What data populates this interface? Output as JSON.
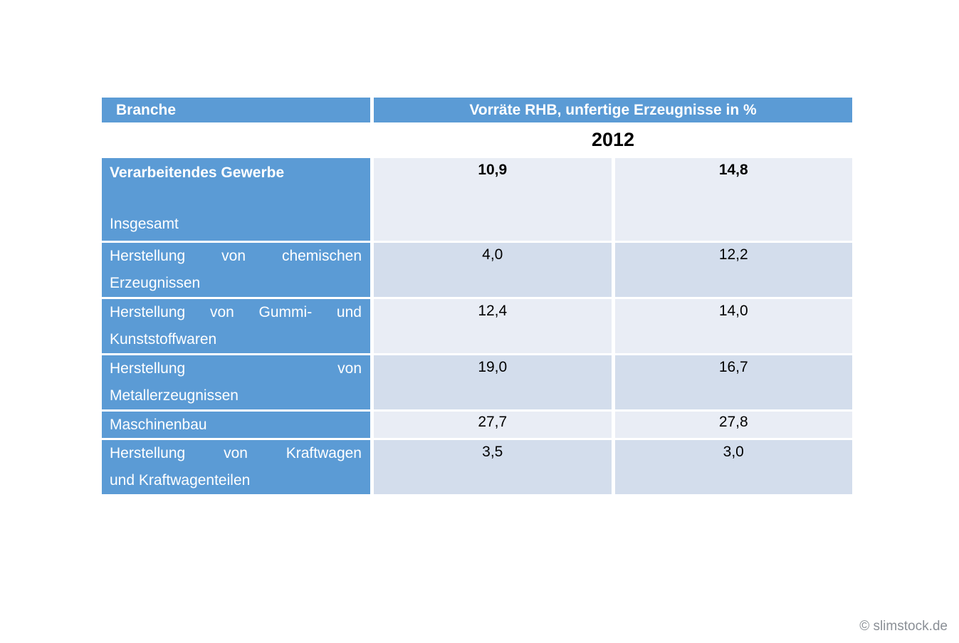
{
  "colors": {
    "header_blue": "#5B9BD5",
    "band_light": "#E9EDF5",
    "band_dark": "#D3DDEC",
    "header_text": "#FFFFFF",
    "value_text": "#000000",
    "footer_text": "#8A8F96"
  },
  "table": {
    "header": {
      "branche": "Branche",
      "vorraete": "Vorräte RHB, unfertige Erzeugnisse in %"
    },
    "year": "2012",
    "rows": [
      {
        "kind": "total",
        "label_top": "Verarbeitendes Gewerbe",
        "label_bottom": "Insgesamt",
        "values": [
          "10,9",
          "14,8"
        ],
        "value_bold": true,
        "band": "light"
      },
      {
        "kind": "normal",
        "label_lines": [
          "Herstellung von chemischen",
          "Erzeugnissen"
        ],
        "values": [
          "4,0",
          "12,2"
        ],
        "band": "dark"
      },
      {
        "kind": "normal",
        "label_lines": [
          "Herstellung von Gummi- und",
          "Kunststoffwaren"
        ],
        "values": [
          "12,4",
          "14,0"
        ],
        "band": "light"
      },
      {
        "kind": "normal",
        "label_lines": [
          "Herstellung von",
          "Metallerzeugnissen"
        ],
        "values": [
          "19,0",
          "16,7"
        ],
        "band": "dark"
      },
      {
        "kind": "normal",
        "label_lines": [
          "Maschinenbau"
        ],
        "values": [
          "27,7",
          "27,8"
        ],
        "band": "light"
      },
      {
        "kind": "normal",
        "label_lines": [
          "Herstellung von Kraftwagen",
          "und Kraftwagenteilen"
        ],
        "values": [
          "3,5",
          "3,0"
        ],
        "band": "dark"
      }
    ]
  },
  "footer": {
    "copyright": "© slimstock.de"
  },
  "chart_data": {
    "type": "table",
    "title": "Vorräte RHB, unfertige Erzeugnisse in %",
    "sub_header": "2012",
    "row_header_column": "Branche",
    "rows": [
      {
        "branche": "Verarbeitendes Gewerbe Insgesamt",
        "values": [
          10.9,
          14.8
        ]
      },
      {
        "branche": "Herstellung von chemischen Erzeugnissen",
        "values": [
          4.0,
          12.2
        ]
      },
      {
        "branche": "Herstellung von Gummi- und Kunststoffwaren",
        "values": [
          12.4,
          14.0
        ]
      },
      {
        "branche": "Herstellung von Metallerzeugnissen",
        "values": [
          19.0,
          16.7
        ]
      },
      {
        "branche": "Maschinenbau",
        "values": [
          27.7,
          27.8
        ]
      },
      {
        "branche": "Herstellung von Kraftwagen und Kraftwagenteilen",
        "values": [
          3.5,
          3.0
        ]
      }
    ]
  }
}
